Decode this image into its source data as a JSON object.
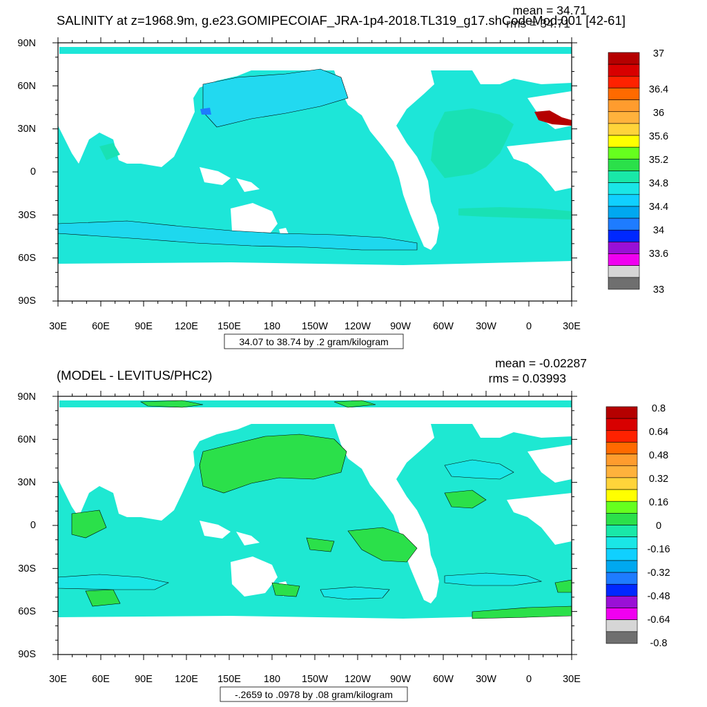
{
  "panels": [
    {
      "id": "top",
      "title": "SALINITY at z=1968.9m, g.e23.GOMIPECOIAF_JRA-1p4-2018.TL319_g17.shCodeMod.001 [42-61]",
      "mean_label": "mean = 34.71",
      "rms_label": "rms = 34.71",
      "range_label": "34.07 to 38.74 by .2 gram/kilogram",
      "lat_labels": [
        "90N",
        "60N",
        "30N",
        "0",
        "30S",
        "60S",
        "90S"
      ],
      "lon_labels": [
        "30E",
        "60E",
        "90E",
        "120E",
        "150E",
        "180",
        "150W",
        "120W",
        "90W",
        "60W",
        "30W",
        "0",
        "30E"
      ],
      "colorbar_labels": [
        "37",
        "36.4",
        "36",
        "35.6",
        "35.2",
        "34.8",
        "34.4",
        "34",
        "33.6",
        "33"
      ],
      "colorbar_colors": [
        "#b50000",
        "#d80000",
        "#ff2200",
        "#ff6a00",
        "#ff9c2e",
        "#ffb23c",
        "#ffd43a",
        "#ffff00",
        "#66ff1e",
        "#2be04a",
        "#19e8a8",
        "#1ae6e6",
        "#10d0ff",
        "#00a8f0",
        "#1e7cff",
        "#0028ff",
        "#9a10d6",
        "#f000f0",
        "#d6d6d6",
        "#6f6f6f"
      ],
      "ocean_base": "#1de6d8",
      "accents": [
        {
          "region": "North Pacific",
          "color": "#22d9f0"
        },
        {
          "region": "Southern band",
          "color": "#1ed8ee"
        },
        {
          "region": "North Atlantic",
          "color": "#19e1b4"
        },
        {
          "region": "Mediterranean outflow",
          "color": "#b50000"
        },
        {
          "region": "Okhotsk",
          "color": "#1e7cff"
        }
      ]
    },
    {
      "id": "bottom",
      "title": "(MODEL - LEVITUS/PHC2)",
      "mean_label": "mean = -0.02287",
      "rms_label": "rms = 0.03993",
      "range_label": "-.2659 to .0978 by .08 gram/kilogram",
      "lat_labels": [
        "90N",
        "60N",
        "30N",
        "0",
        "30S",
        "60S",
        "90S"
      ],
      "lon_labels": [
        "30E",
        "60E",
        "90E",
        "120E",
        "150E",
        "180",
        "150W",
        "120W",
        "90W",
        "60W",
        "30W",
        "0",
        "30E"
      ],
      "colorbar_labels": [
        "0.8",
        "0.64",
        "0.48",
        "0.32",
        "0.16",
        "0",
        "-0.16",
        "-0.32",
        "-0.48",
        "-0.64",
        "-0.8"
      ],
      "colorbar_colors": [
        "#b50000",
        "#d80000",
        "#ff2200",
        "#ff6a00",
        "#ff9c2e",
        "#ffb23c",
        "#ffd43a",
        "#ffff00",
        "#66ff1e",
        "#2be04a",
        "#19e8a8",
        "#1ae6e6",
        "#10d0ff",
        "#00a8f0",
        "#1e7cff",
        "#0028ff",
        "#9a10d6",
        "#f000f0",
        "#d6d6d6",
        "#6f6f6f"
      ],
      "ocean_base": "#1ee8d2",
      "accents": [
        {
          "region": "North Pacific",
          "color": "#2be04a"
        },
        {
          "region": "Equatorial Pacific",
          "color": "#2be04a"
        },
        {
          "region": "Arctic",
          "color": "#2be04a"
        },
        {
          "region": "Southern Ocean",
          "color": "#1ae6e6"
        },
        {
          "region": "North Atlantic",
          "color": "#1ae6e6"
        }
      ]
    }
  ]
}
